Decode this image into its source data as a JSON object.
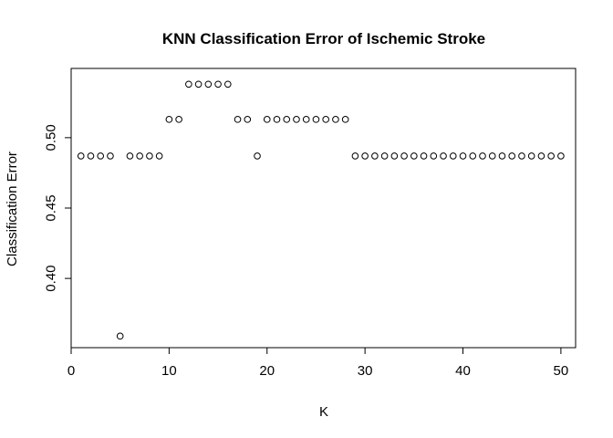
{
  "chart_data": {
    "type": "scatter",
    "title": "KNN Classification Error of Ischemic Stroke",
    "xlabel": "K",
    "ylabel": "Classification Error",
    "xlim": [
      0,
      51.5
    ],
    "ylim": [
      0.3508,
      0.5492
    ],
    "x_ticks": [
      0,
      10,
      20,
      30,
      40,
      50
    ],
    "y_ticks": [
      0.4,
      0.45,
      0.5
    ],
    "x_tick_labels": [
      "0",
      "10",
      "20",
      "30",
      "40",
      "50"
    ],
    "y_tick_labels": [
      "0.40",
      "0.45",
      "0.50"
    ],
    "grid": false,
    "legend": false,
    "series": [
      {
        "x": [
          1,
          2,
          3,
          4,
          5,
          6,
          7,
          8,
          9,
          10,
          11,
          12,
          13,
          14,
          15,
          16,
          17,
          18,
          19,
          20,
          21,
          22,
          23,
          24,
          25,
          26,
          27,
          28,
          29,
          30,
          31,
          32,
          33,
          34,
          35,
          36,
          37,
          38,
          39,
          40,
          41,
          42,
          43,
          44,
          45,
          46,
          47,
          48,
          49,
          50
        ],
        "y": [
          0.487,
          0.487,
          0.487,
          0.487,
          0.359,
          0.487,
          0.487,
          0.487,
          0.487,
          0.513,
          0.513,
          0.538,
          0.538,
          0.538,
          0.538,
          0.538,
          0.513,
          0.513,
          0.487,
          0.513,
          0.513,
          0.513,
          0.513,
          0.513,
          0.513,
          0.513,
          0.513,
          0.513,
          0.487,
          0.487,
          0.487,
          0.487,
          0.487,
          0.487,
          0.487,
          0.487,
          0.487,
          0.487,
          0.487,
          0.487,
          0.487,
          0.487,
          0.487,
          0.487,
          0.487,
          0.487,
          0.487,
          0.487,
          0.487,
          0.487
        ]
      }
    ]
  }
}
